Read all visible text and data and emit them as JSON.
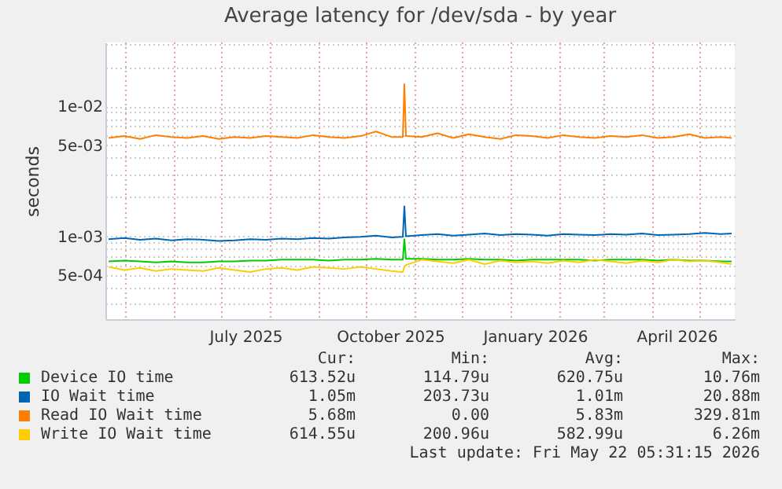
{
  "chart_data": {
    "type": "line",
    "title": "Average latency for /dev/sda - by year",
    "ylabel": "seconds",
    "log": "y",
    "grid": true,
    "legend": "bottom",
    "xlim": [
      "2025-04-18",
      "2026-05-23"
    ],
    "xticks": [
      {
        "value": "2025-05-01",
        "label": null
      },
      {
        "value": "2025-06-01",
        "label": null
      },
      {
        "value": "2025-07-01",
        "label": null
      },
      {
        "value": "2025-07-16",
        "label": "July 2025"
      },
      {
        "value": "2025-08-01",
        "label": null
      },
      {
        "value": "2025-09-01",
        "label": null
      },
      {
        "value": "2025-10-01",
        "label": null
      },
      {
        "value": "2025-10-16",
        "label": "October 2025"
      },
      {
        "value": "2025-11-01",
        "label": null
      },
      {
        "value": "2025-12-01",
        "label": null
      },
      {
        "value": "2026-01-01",
        "label": null
      },
      {
        "value": "2026-01-16",
        "label": "January 2026"
      },
      {
        "value": "2026-02-01",
        "label": null
      },
      {
        "value": "2026-03-01",
        "label": null
      },
      {
        "value": "2026-04-01",
        "label": null
      },
      {
        "value": "2026-04-16",
        "label": "April 2026"
      },
      {
        "value": "2026-05-01",
        "label": null
      }
    ],
    "ylim": [
      0.00023,
      0.031
    ],
    "yticks": [
      {
        "value": 0.0003,
        "label": null
      },
      {
        "value": 0.0004,
        "label": null
      },
      {
        "value": 0.0005,
        "label": "5e-04"
      },
      {
        "value": 0.0006,
        "label": null
      },
      {
        "value": 0.0007,
        "label": null
      },
      {
        "value": 0.0008,
        "label": null
      },
      {
        "value": 0.0009,
        "label": null
      },
      {
        "value": 0.001,
        "label": "1e-03"
      },
      {
        "value": 0.002,
        "label": null
      },
      {
        "value": 0.003,
        "label": null
      },
      {
        "value": 0.004,
        "label": null
      },
      {
        "value": 0.005,
        "label": "5e-03"
      },
      {
        "value": 0.006,
        "label": null
      },
      {
        "value": 0.007,
        "label": null
      },
      {
        "value": 0.008,
        "label": null
      },
      {
        "value": 0.009,
        "label": null
      },
      {
        "value": 0.01,
        "label": "1e-02"
      },
      {
        "value": 0.02,
        "label": null
      },
      {
        "value": 0.03,
        "label": null
      }
    ],
    "x": [
      "2025-04-20",
      "2025-04-30",
      "2025-05-10",
      "2025-05-20",
      "2025-05-30",
      "2025-06-09",
      "2025-06-19",
      "2025-06-29",
      "2025-07-09",
      "2025-07-19",
      "2025-07-29",
      "2025-08-08",
      "2025-08-18",
      "2025-08-28",
      "2025-09-07",
      "2025-09-17",
      "2025-09-27",
      "2025-10-07",
      "2025-10-17",
      "2025-10-24",
      "2025-10-25",
      "2025-10-26",
      "2025-11-05",
      "2025-11-15",
      "2025-11-25",
      "2025-12-05",
      "2025-12-15",
      "2025-12-25",
      "2026-01-04",
      "2026-01-14",
      "2026-01-24",
      "2026-02-03",
      "2026-02-13",
      "2026-02-23",
      "2026-03-05",
      "2026-03-15",
      "2026-03-25",
      "2026-04-04",
      "2026-04-14",
      "2026-04-24",
      "2026-05-04",
      "2026-05-14",
      "2026-05-21"
    ],
    "series": [
      {
        "name": "Device IO time",
        "color": "#00cc00",
        "values": [
          0.00064,
          0.00065,
          0.00064,
          0.00063,
          0.00064,
          0.00063,
          0.00063,
          0.00064,
          0.00064,
          0.00065,
          0.00065,
          0.00066,
          0.00066,
          0.00066,
          0.00065,
          0.00066,
          0.00066,
          0.00067,
          0.00066,
          0.00066,
          0.00095,
          0.00067,
          0.00067,
          0.00066,
          0.00066,
          0.00067,
          0.00066,
          0.00066,
          0.00065,
          0.00066,
          0.00066,
          0.00066,
          0.00066,
          0.00065,
          0.00066,
          0.00066,
          0.00066,
          0.00065,
          0.00066,
          0.00065,
          0.00065,
          0.00064,
          0.00064
        ]
      },
      {
        "name": "IO Wait time",
        "color": "#0066b3",
        "values": [
          0.00095,
          0.00097,
          0.00094,
          0.00096,
          0.00093,
          0.00095,
          0.00094,
          0.00092,
          0.00093,
          0.00095,
          0.00094,
          0.00096,
          0.00095,
          0.00097,
          0.00096,
          0.00098,
          0.00099,
          0.00101,
          0.00098,
          0.00099,
          0.0017,
          0.001,
          0.00102,
          0.00104,
          0.00101,
          0.00103,
          0.00105,
          0.00102,
          0.00104,
          0.00103,
          0.00101,
          0.00104,
          0.00103,
          0.00102,
          0.00104,
          0.00103,
          0.00105,
          0.00102,
          0.00103,
          0.00104,
          0.00106,
          0.00104,
          0.00105
        ]
      },
      {
        "name": "Read IO Wait time",
        "color": "#ff8000",
        "values": [
          0.0057,
          0.0059,
          0.0056,
          0.006,
          0.0058,
          0.0057,
          0.0059,
          0.0056,
          0.0058,
          0.0057,
          0.0059,
          0.0058,
          0.0057,
          0.006,
          0.0058,
          0.0057,
          0.0059,
          0.0064,
          0.0058,
          0.0058,
          0.0148,
          0.0059,
          0.0058,
          0.0062,
          0.0057,
          0.0061,
          0.0058,
          0.0056,
          0.006,
          0.0059,
          0.0057,
          0.006,
          0.0058,
          0.0057,
          0.0059,
          0.0058,
          0.006,
          0.0057,
          0.0058,
          0.0061,
          0.0057,
          0.0058,
          0.0057
        ]
      },
      {
        "name": "Write IO Wait time",
        "color": "#ffcc00",
        "values": [
          0.00058,
          0.00055,
          0.00057,
          0.00054,
          0.00056,
          0.00055,
          0.00054,
          0.00057,
          0.00055,
          0.00053,
          0.00056,
          0.00057,
          0.00055,
          0.00058,
          0.00057,
          0.00056,
          0.00058,
          0.00056,
          0.00054,
          0.00053,
          0.00058,
          0.0006,
          0.00066,
          0.00064,
          0.00062,
          0.00066,
          0.00061,
          0.00065,
          0.00063,
          0.00064,
          0.00062,
          0.00065,
          0.00063,
          0.00066,
          0.00064,
          0.00062,
          0.00065,
          0.00063,
          0.00066,
          0.00064,
          0.00065,
          0.00063,
          0.00061
        ]
      }
    ],
    "annotations": [
      "Cur:",
      "Min:",
      "Avg:",
      "Max:",
      "613.52u",
      "114.79u",
      "620.75u",
      "10.76m",
      "1.05m",
      "203.73u",
      "1.01m",
      "20.88m",
      "5.68m",
      "0.00",
      "5.83m",
      "329.81m",
      "614.55u",
      "200.96u",
      "582.99u",
      "6.26m",
      "Last update: Fri May 22 05:31:15 2026"
    ]
  }
}
